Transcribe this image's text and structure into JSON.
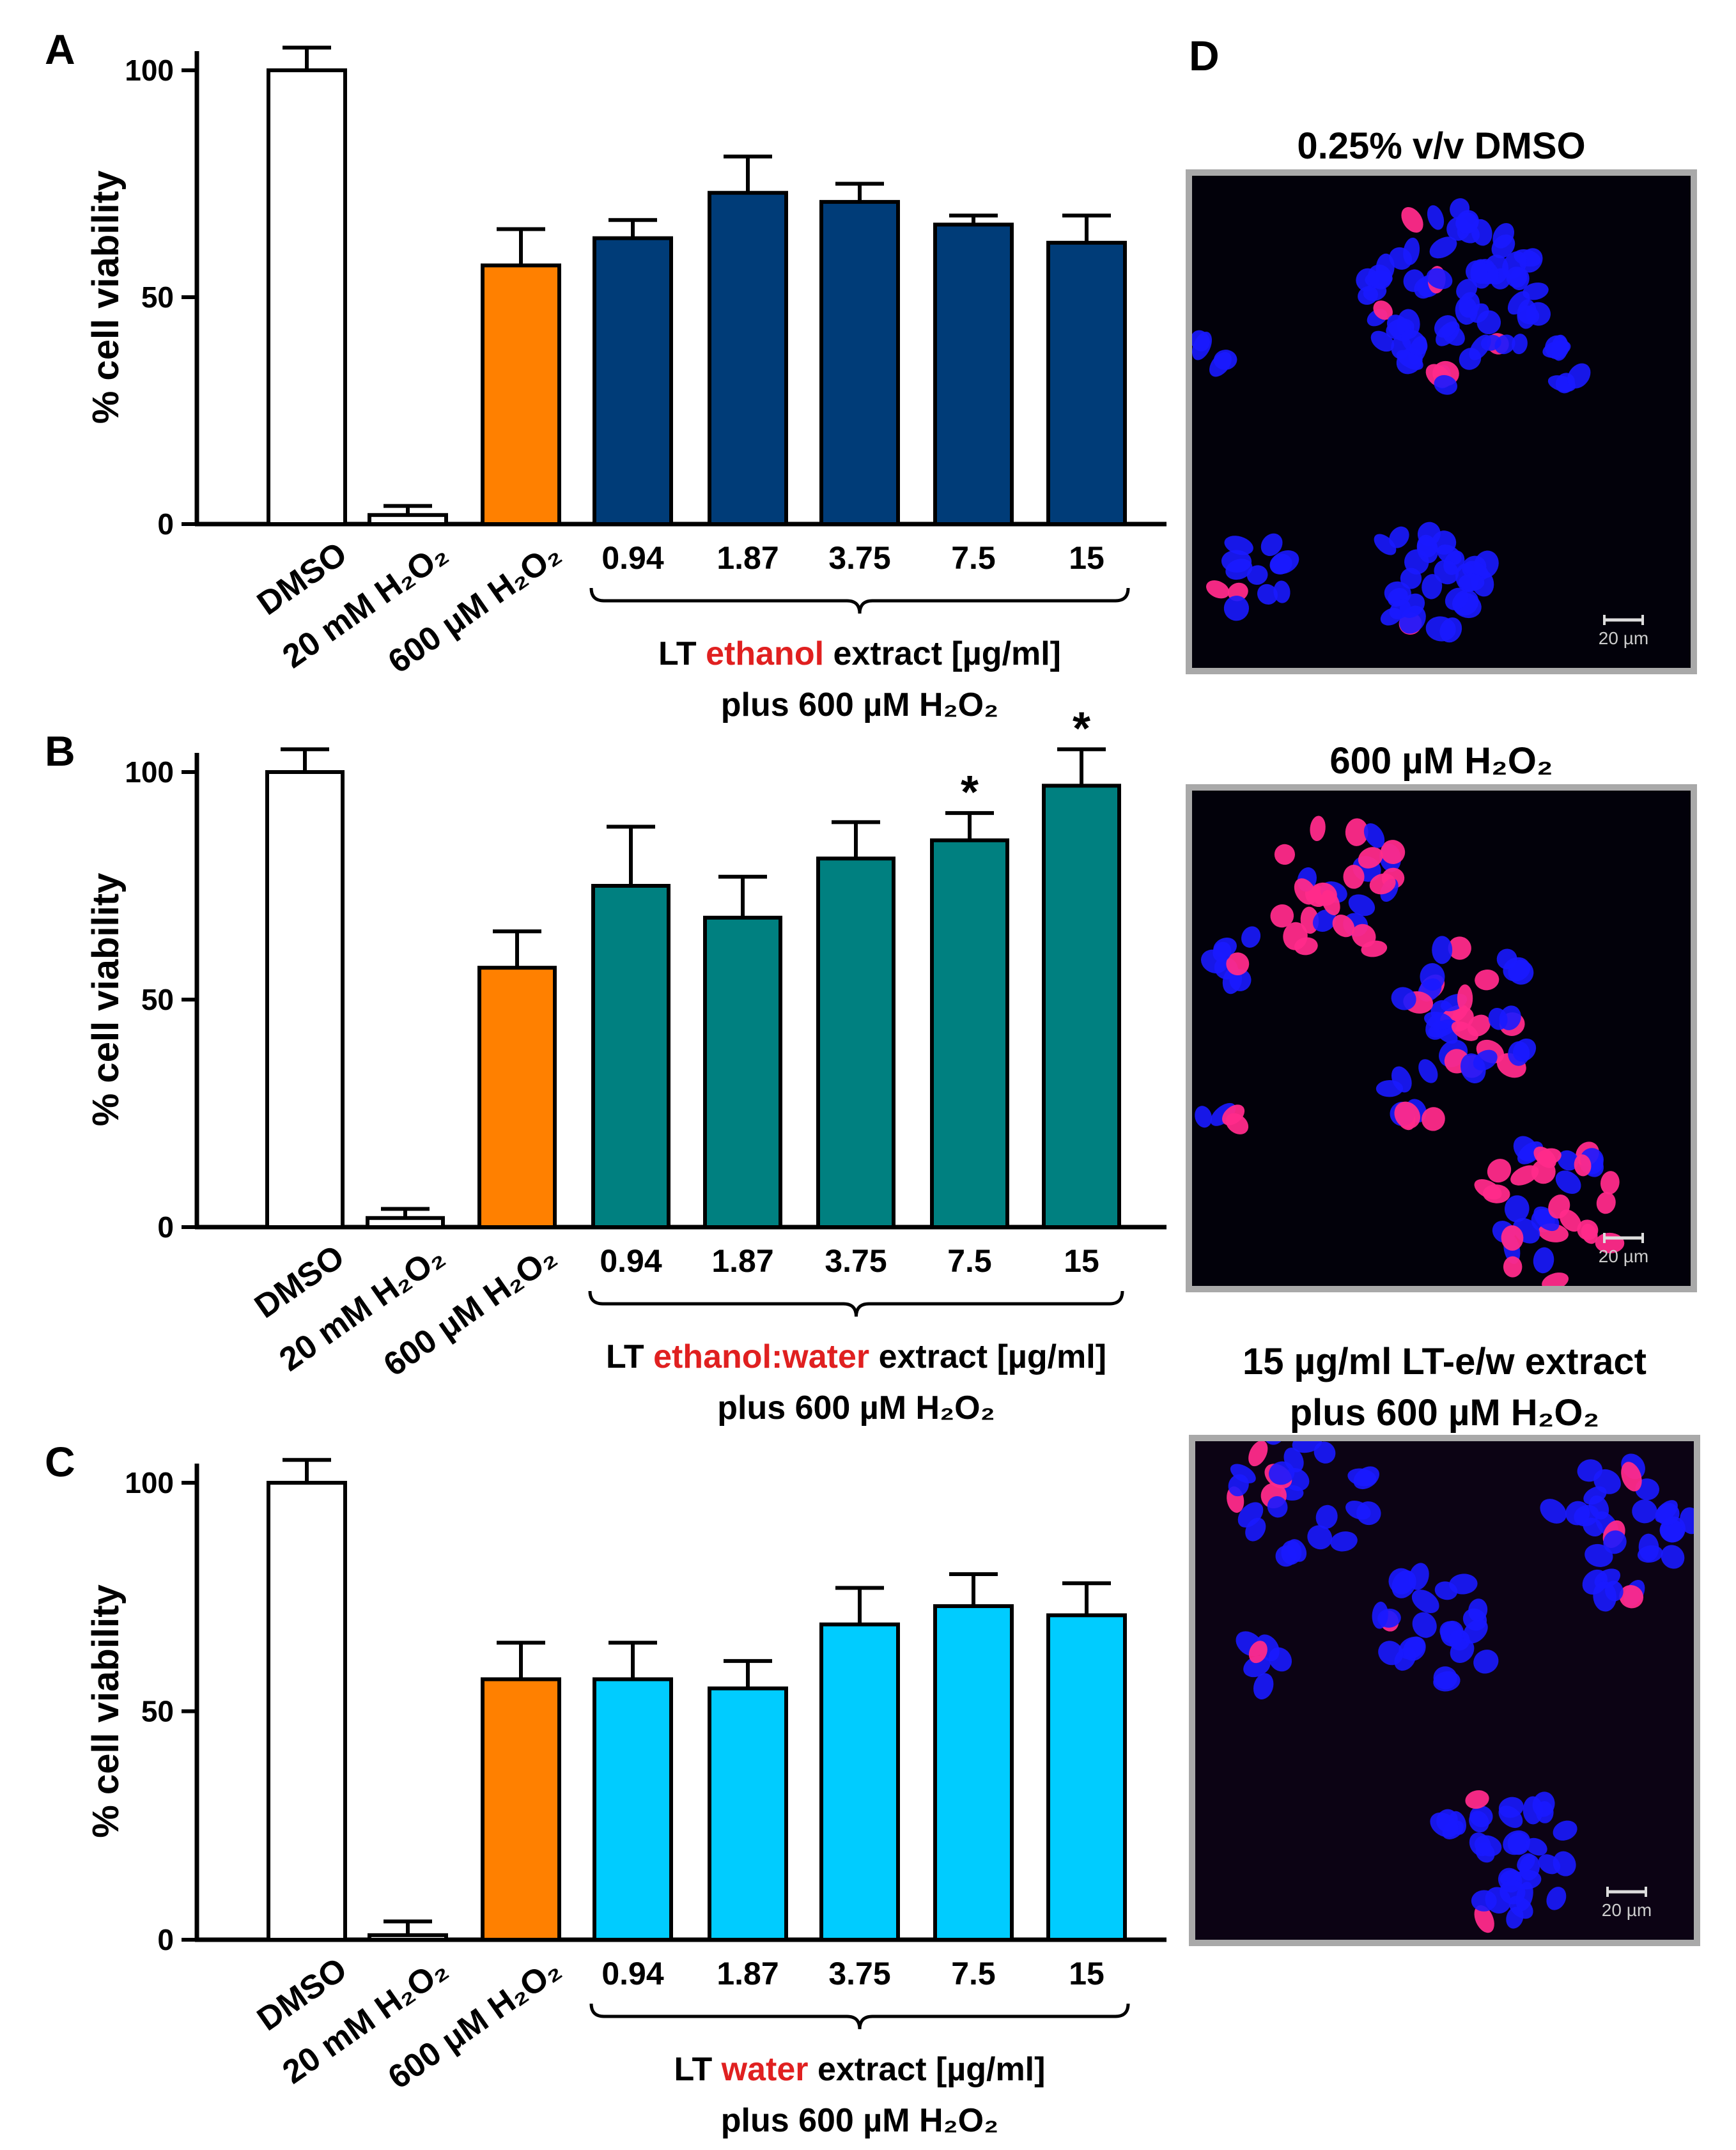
{
  "chart_data": [
    {
      "panel": "A",
      "type": "bar",
      "ylabel": "% cell viability",
      "ylim": [
        0,
        100
      ],
      "yticks": [
        0,
        50,
        100
      ],
      "categories": [
        "DMSO",
        "20 mM H₂O₂",
        "600 μM H₂O₂",
        "0.94",
        "1.87",
        "3.75",
        "7.5",
        "15"
      ],
      "values": [
        100,
        2,
        57,
        63,
        73,
        71,
        66,
        62
      ],
      "errors": [
        5,
        2,
        8,
        4,
        8,
        4,
        2,
        6
      ],
      "colors": [
        "#ffffff",
        "#ffffff",
        "#ff8000",
        "#003c78",
        "#003c78",
        "#003c78",
        "#003c78",
        "#003c78"
      ],
      "significance": [
        "",
        "",
        "",
        "",
        "",
        "",
        "",
        ""
      ],
      "caption_pre": "LT ",
      "caption_highlight": "ethanol",
      "caption_post": " extract [µg/ml]",
      "caption_line2": "plus 600 µM H₂O₂"
    },
    {
      "panel": "B",
      "type": "bar",
      "ylabel": "% cell viability",
      "ylim": [
        0,
        100
      ],
      "yticks": [
        0,
        50,
        100
      ],
      "categories": [
        "DMSO",
        "20 mM H₂O₂",
        "600 μM H₂O₂",
        "0.94",
        "1.87",
        "3.75",
        "7.5",
        "15"
      ],
      "values": [
        100,
        2,
        57,
        75,
        68,
        81,
        85,
        97
      ],
      "errors": [
        5,
        2,
        8,
        13,
        9,
        8,
        6,
        8
      ],
      "colors": [
        "#ffffff",
        "#ffffff",
        "#ff8000",
        "#008080",
        "#008080",
        "#008080",
        "#008080",
        "#008080"
      ],
      "significance": [
        "",
        "",
        "",
        "",
        "",
        "",
        "*",
        "*"
      ],
      "caption_pre": "LT ",
      "caption_highlight": "ethanol:water",
      "caption_post": " extract [µg/ml]",
      "caption_line2": "plus 600 µM H₂O₂"
    },
    {
      "panel": "C",
      "type": "bar",
      "ylabel": "% cell viability",
      "ylim": [
        0,
        100
      ],
      "yticks": [
        0,
        50,
        100
      ],
      "categories": [
        "DMSO",
        "20 mM H₂O₂",
        "600 μM H₂O₂",
        "0.94",
        "1.87",
        "3.75",
        "7.5",
        "15"
      ],
      "values": [
        100,
        1,
        57,
        57,
        55,
        69,
        73,
        71
      ],
      "errors": [
        5,
        3,
        8,
        8,
        6,
        8,
        7,
        7
      ],
      "colors": [
        "#ffffff",
        "#ffffff",
        "#ff8000",
        "#00ccff",
        "#00ccff",
        "#00ccff",
        "#00ccff",
        "#00ccff"
      ],
      "significance": [
        "",
        "",
        "",
        "",
        "",
        "",
        "",
        ""
      ],
      "caption_pre": "LT ",
      "caption_highlight": "water",
      "caption_post": " extract [µg/ml]",
      "caption_line2": "plus 600 µM H₂O₂"
    }
  ],
  "panel_d": {
    "label": "D",
    "images": [
      {
        "title_line1": "0.25% v/v DMSO",
        "title_line2": "",
        "scale_label": "20 µm"
      },
      {
        "title_line1": "600 µM H₂O₂",
        "title_line2": "",
        "scale_label": "20 µm"
      },
      {
        "title_line1": "15 µg/ml LT-e/w extract",
        "title_line2": "plus 600 µM H₂O₂",
        "scale_label": "20 µm"
      }
    ]
  },
  "colors": {
    "highlight": "#e02020",
    "nucleus_blue": "#1a1aff",
    "dead_cell_pink": "#ff2a8a"
  }
}
